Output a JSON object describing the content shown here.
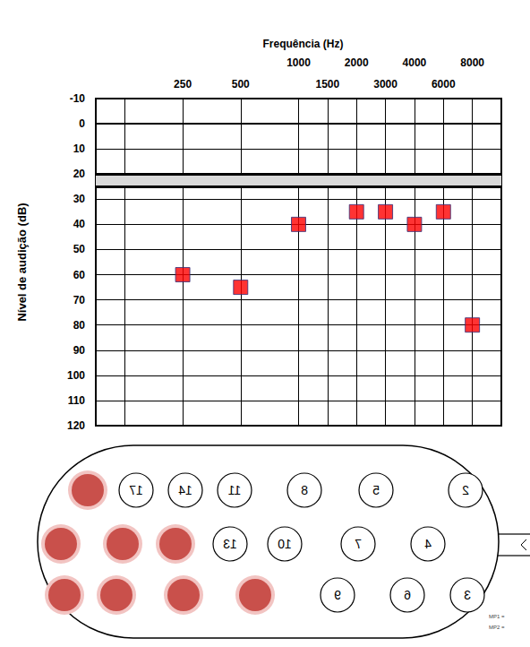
{
  "chart_data": {
    "type": "scatter",
    "title": "Frequência (Hz)",
    "y_label": "Nível de audição (dB)",
    "categories": [
      null,
      null,
      null,
      "250",
      null,
      "500",
      null,
      "1000",
      "1500",
      "2000",
      "3000",
      "4000",
      "6000",
      "8000",
      null
    ],
    "values": [
      null,
      null,
      null,
      60,
      null,
      65,
      null,
      40,
      null,
      35,
      35,
      40,
      35,
      80,
      null
    ],
    "color": "#ff0000",
    "marker": "square",
    "ylim": [
      -10,
      120
    ],
    "yticks": [
      -10,
      0,
      10,
      20,
      30,
      40,
      50,
      60,
      70,
      80,
      90,
      100,
      110,
      120
    ],
    "band": [
      20,
      25
    ],
    "grid": true
  },
  "electrode_array": {
    "fill_color": "#c9504b",
    "rows": [
      [
        {
          "filled": true
        },
        {
          "label": "17"
        },
        {
          "label": "14"
        },
        {
          "label": "11"
        },
        {
          "label": "8"
        },
        {
          "label": "5"
        },
        {
          "label": "2"
        }
      ],
      [
        {
          "filled": true
        },
        {
          "filled": true
        },
        {
          "filled": true
        },
        {
          "label": "13"
        },
        {
          "label": "10"
        },
        {
          "label": "7"
        },
        {
          "label": "4"
        }
      ],
      [
        {
          "filled": true
        },
        {
          "filled": true
        },
        {
          "filled": true
        },
        {
          "filled": true
        },
        {
          "label": "9"
        },
        {
          "label": "6"
        },
        {
          "label": "3"
        }
      ]
    ],
    "notes": [
      "MP1 =",
      "MP2 ="
    ]
  }
}
